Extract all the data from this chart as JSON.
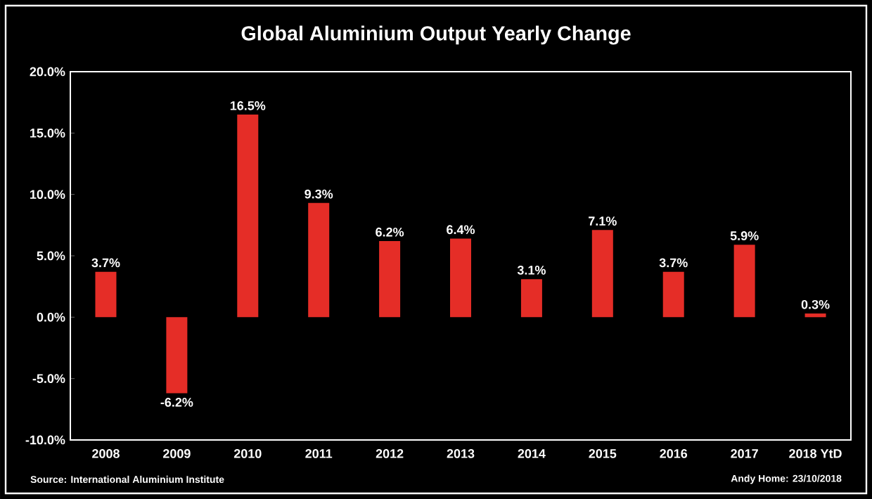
{
  "chart_data": {
    "type": "bar",
    "title": "Global Aluminium Output Yearly Change",
    "categories": [
      "2008",
      "2009",
      "2010",
      "2011",
      "2012",
      "2013",
      "2014",
      "2015",
      "2016",
      "2017",
      "2018 YtD"
    ],
    "values": [
      3.7,
      -6.2,
      16.5,
      9.3,
      6.2,
      6.4,
      3.1,
      7.1,
      3.7,
      5.9,
      0.3
    ],
    "value_labels": [
      "3.7%",
      "-6.2%",
      "16.5%",
      "9.3%",
      "6.2%",
      "6.4%",
      "3.1%",
      "7.1%",
      "3.7%",
      "5.9%",
      "0.3%"
    ],
    "color": "#e52d27",
    "ylim": [
      -10,
      20
    ],
    "yticks": [
      {
        "value": -10,
        "label": "-10.0%"
      },
      {
        "value": -5,
        "label": "-5.0%"
      },
      {
        "value": 0,
        "label": "0.0%"
      },
      {
        "value": 5,
        "label": "5.0%"
      },
      {
        "value": 10,
        "label": "10.0%"
      },
      {
        "value": 15,
        "label": "15.0%"
      },
      {
        "value": 20,
        "label": "20.0%"
      }
    ],
    "annotations": [
      "Source: International Aluminium Institute",
      "Andy Home: 23/10/2018"
    ]
  }
}
